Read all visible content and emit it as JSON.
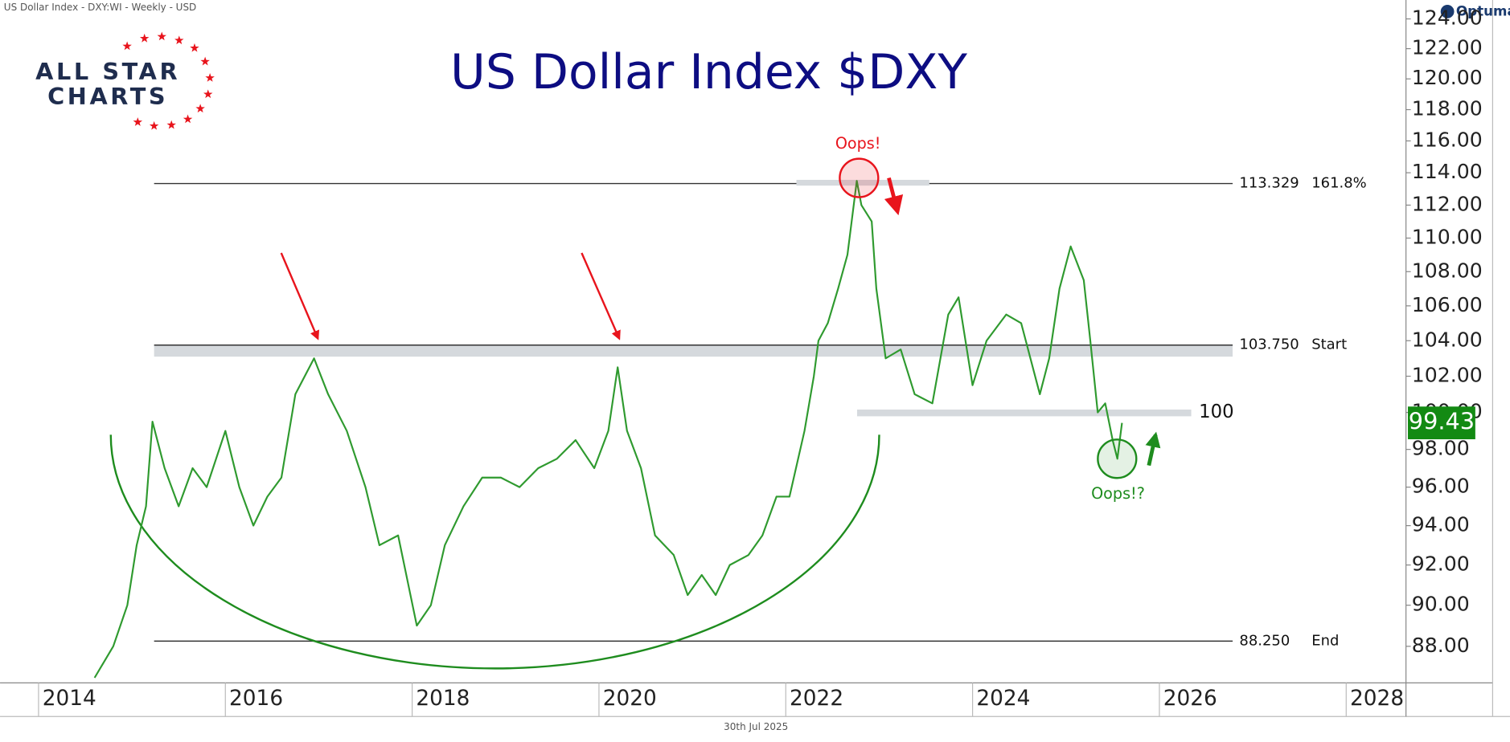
{
  "header": "US Dollar Index - DXY:WI - Weekly - USD",
  "footer": "30th Jul 2025",
  "brand": "Optuma",
  "logo": {
    "line1": "ALL STAR",
    "line2": "CHARTS"
  },
  "annotations": {
    "top": "Oops!",
    "bottom": "Oops!?"
  },
  "levels": [
    {
      "value": 113.329,
      "tag": "161.8%"
    },
    {
      "value": 103.75,
      "label": "103.750",
      "tag": "Start"
    },
    {
      "value": 88.25,
      "label": "88.250",
      "tag": "End"
    },
    {
      "value": 100
    }
  ],
  "chart_data": {
    "type": "line",
    "title": "US Dollar Index $DXY",
    "color": "#2f9a2f",
    "log_y": true,
    "x": [
      2014.6,
      2014.8,
      2014.95,
      2015.05,
      2015.15,
      2015.22,
      2015.35,
      2015.5,
      2015.65,
      2015.8,
      2016.0,
      2016.15,
      2016.3,
      2016.45,
      2016.6,
      2016.75,
      2016.95,
      2017.1,
      2017.3,
      2017.5,
      2017.65,
      2017.85,
      2018.05,
      2018.2,
      2018.35,
      2018.55,
      2018.75,
      2018.95,
      2019.15,
      2019.35,
      2019.55,
      2019.75,
      2019.95,
      2020.1,
      2020.2,
      2020.3,
      2020.45,
      2020.6,
      2020.8,
      2020.95,
      2021.1,
      2021.25,
      2021.4,
      2021.6,
      2021.75,
      2021.9,
      2022.04,
      2022.2,
      2022.3,
      2022.35,
      2022.45,
      2022.56,
      2022.66,
      2022.76,
      2022.81,
      2022.92,
      2022.97,
      2023.07,
      2023.23,
      2023.38,
      2023.57,
      2023.74,
      2023.85,
      2024.0,
      2024.15,
      2024.36,
      2024.52,
      2024.72,
      2024.82,
      2024.93,
      2025.05,
      2025.19,
      2025.26,
      2025.34,
      2025.42,
      2025.5,
      2025.55,
      2025.6
    ],
    "values": [
      86.5,
      88,
      90,
      93,
      95,
      99.5,
      97,
      95,
      97,
      96,
      99,
      96,
      94,
      95.5,
      96.5,
      101,
      103,
      101,
      99,
      96,
      93,
      93.5,
      89,
      90,
      93,
      95,
      96.5,
      96.5,
      96,
      97,
      97.5,
      98.5,
      97,
      99,
      102.5,
      99,
      97,
      93.5,
      92.5,
      90.5,
      91.5,
      90.5,
      92,
      92.5,
      93.5,
      95.5,
      95.5,
      99,
      102,
      104,
      105,
      107,
      109,
      113.5,
      112,
      111,
      107,
      103,
      103.5,
      101,
      100.5,
      105.5,
      106.5,
      101.5,
      104,
      105.5,
      105,
      101,
      103,
      107,
      109.5,
      107.5,
      104,
      100,
      100.5,
      98.5,
      97.5,
      99.43
    ],
    "xlim": [
      2013.67,
      2028.64
    ],
    "xticks": [
      2014,
      2016,
      2018,
      2020,
      2022,
      2024,
      2026,
      2028
    ],
    "ylim": [
      86.26,
      124.5
    ],
    "yticks": [
      {
        "value": 88,
        "label": "88.00"
      },
      {
        "value": 90,
        "label": "90.00"
      },
      {
        "value": 92,
        "label": "92.00"
      },
      {
        "value": 94,
        "label": "94.00"
      },
      {
        "value": 96,
        "label": "96.00"
      },
      {
        "value": 98,
        "label": "98.00"
      },
      {
        "value": 100,
        "label": "100.00"
      },
      {
        "value": 102,
        "label": "102.00"
      },
      {
        "value": 104,
        "label": "104.00"
      },
      {
        "value": 106,
        "label": "106.00"
      },
      {
        "value": 108,
        "label": "108.00"
      },
      {
        "value": 110,
        "label": "110.00"
      },
      {
        "value": 112,
        "label": "112.00"
      },
      {
        "value": 114,
        "label": "114.00"
      },
      {
        "value": 116,
        "label": "116.00"
      },
      {
        "value": 118,
        "label": "118.00"
      },
      {
        "value": 120,
        "label": "120.00"
      },
      {
        "value": 122,
        "label": "122.00"
      },
      {
        "value": 124,
        "label": "124.00"
      }
    ]
  }
}
